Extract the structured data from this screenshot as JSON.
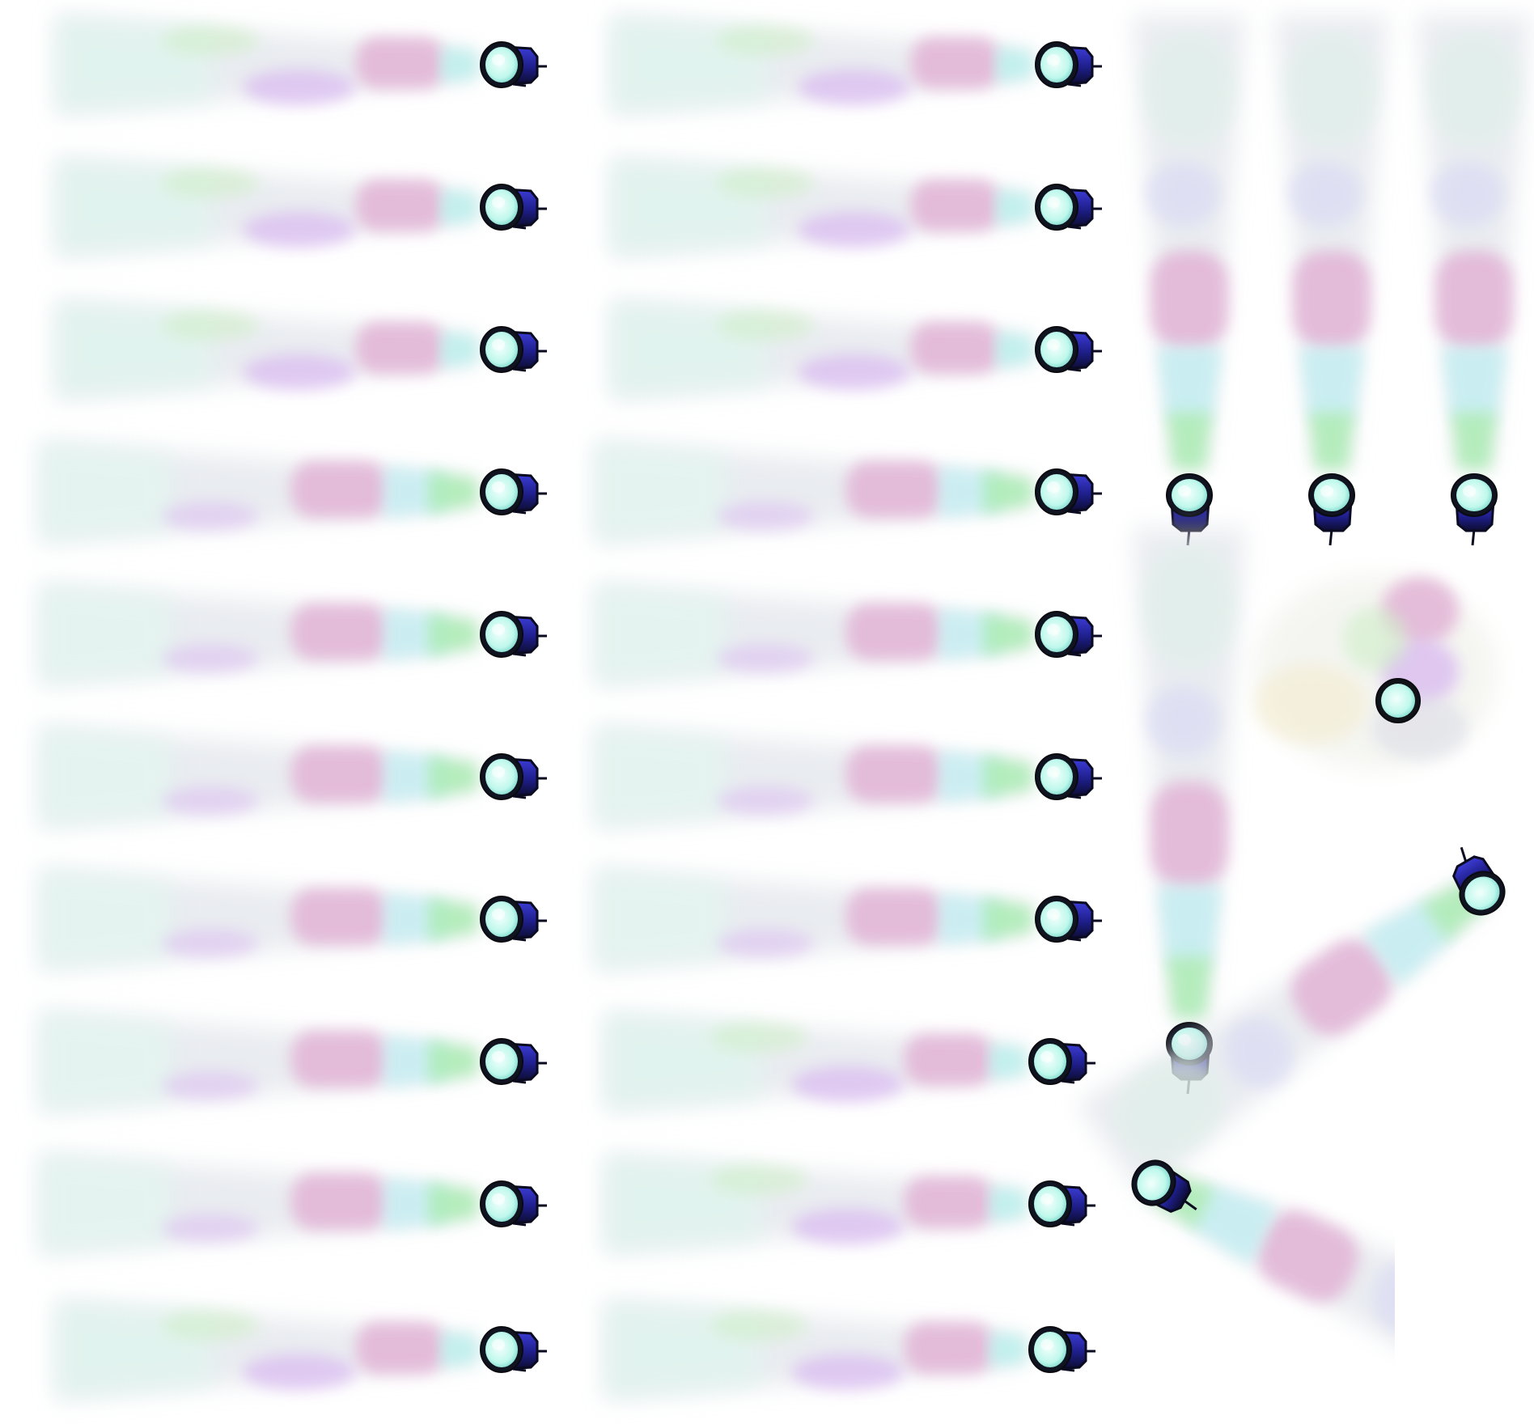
{
  "sprite_sheet": {
    "subject": "spotlight-sprite-frames",
    "colors": {
      "background": "#ffffff",
      "housing_dark": "#14142a",
      "housing_blue": "#2a2ab8",
      "lens_glow": "#c8fff4",
      "lens_rim": "#1a2a2a",
      "beam_pink": "#e7b8d8",
      "beam_cyan": "#b8f0f0",
      "beam_green": "#a8ecb0",
      "beam_violet": "#d8b8f0",
      "beam_grey": "#d8dde4",
      "beam_yellow": "#f2f0a8",
      "beam_mint": "#d8fff0"
    },
    "sections": [
      {
        "id": "left-column",
        "orientation": "beam-left",
        "frame_count": 10
      },
      {
        "id": "middle-column",
        "orientation": "beam-left",
        "frame_count": 10
      },
      {
        "id": "top-right-group",
        "orientation": "beam-up",
        "frame_count": 3
      },
      {
        "id": "right-middle-single",
        "orientation": "beam-up",
        "frame_count": 1
      },
      {
        "id": "top-down-view",
        "orientation": "overhead",
        "frame_count": 1
      },
      {
        "id": "diagonal-down-left",
        "orientation": "beam-diagonal-down-left",
        "frame_count": 1
      },
      {
        "id": "diagonal-down-right",
        "orientation": "beam-diagonal-down-right",
        "frame_count": 1
      }
    ]
  }
}
